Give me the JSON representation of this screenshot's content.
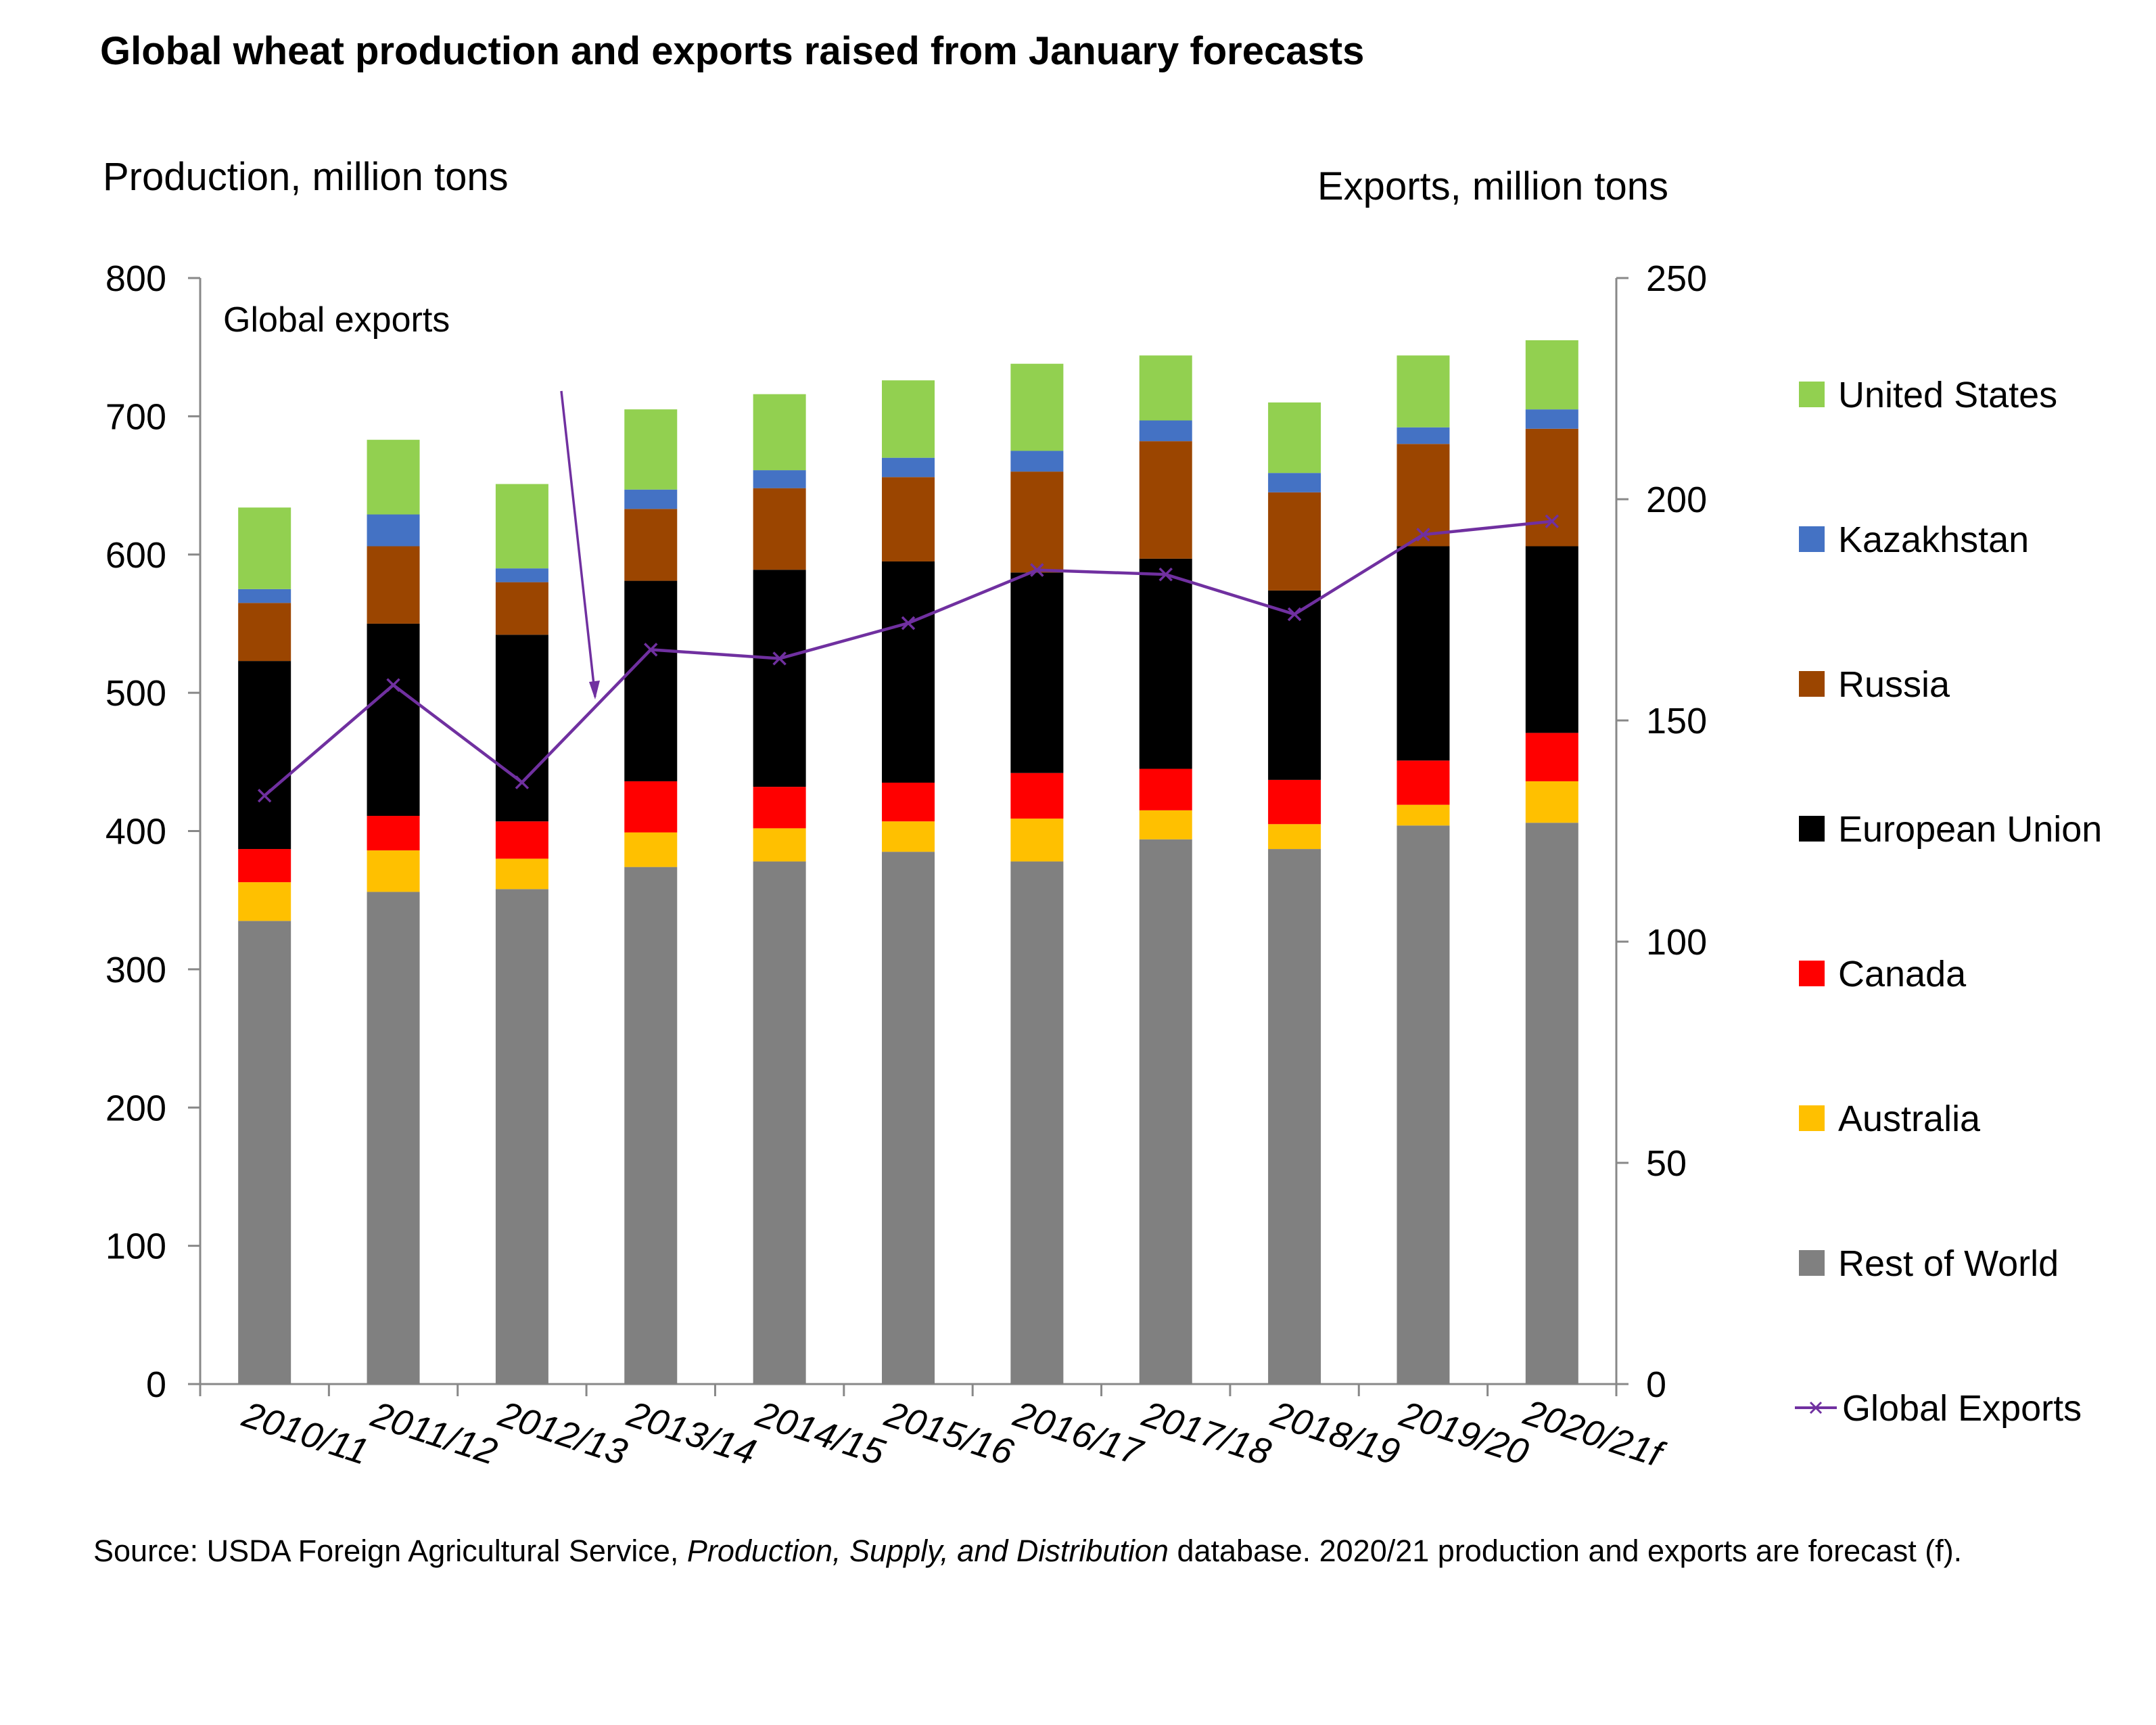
{
  "title": "Global wheat production and exports raised from January forecasts",
  "source": {
    "prefix": "Source: USDA Foreign Agricultural Service, ",
    "database_name": "Production, Supply, and Distribution",
    "suffix": " database. 2020/21 production and exports are forecast (f)."
  },
  "chart_data": {
    "type": "bar",
    "stacked": true,
    "title": "Global wheat production and exports raised from January forecasts",
    "ylabel": "Production, million tons",
    "y2label": "Exports, million tons",
    "ylim": [
      0,
      800
    ],
    "y2lim": [
      0,
      250
    ],
    "yticks": [
      0,
      100,
      200,
      300,
      400,
      500,
      600,
      700,
      800
    ],
    "y2ticks": [
      0,
      50,
      100,
      150,
      200,
      250
    ],
    "grid": false,
    "legend_position": "right",
    "annotation": {
      "text": "Global exports"
    },
    "categories": [
      "2010/11",
      "2011/12",
      "2012/13",
      "2013/14",
      "2014/15",
      "2015/16",
      "2016/17",
      "2017/18",
      "2018/19",
      "2019/20",
      "2020/21f"
    ],
    "series": [
      {
        "name": "Rest of World",
        "color": "#808080",
        "values": [
          335,
          356,
          358,
          374,
          378,
          385,
          378,
          394,
          387,
          404,
          406
        ]
      },
      {
        "name": "Australia",
        "color": "#FFC000",
        "values": [
          28,
          30,
          22,
          25,
          24,
          22,
          31,
          21,
          18,
          15,
          30
        ]
      },
      {
        "name": "Canada",
        "color": "#FF0000",
        "values": [
          24,
          25,
          27,
          37,
          30,
          28,
          33,
          30,
          32,
          32,
          35
        ]
      },
      {
        "name": "European Union",
        "color": "#000000",
        "values": [
          136,
          139,
          135,
          145,
          157,
          160,
          145,
          152,
          137,
          155,
          135
        ]
      },
      {
        "name": "Russia",
        "color": "#9B4500",
        "values": [
          42,
          56,
          38,
          52,
          59,
          61,
          73,
          85,
          71,
          74,
          85
        ]
      },
      {
        "name": "Kazakhstan",
        "color": "#4472C4",
        "values": [
          10,
          23,
          10,
          14,
          13,
          14,
          15,
          15,
          14,
          12,
          14
        ]
      },
      {
        "name": "United States",
        "color": "#92D050",
        "values": [
          59,
          54,
          61,
          58,
          55,
          56,
          63,
          47,
          51,
          52,
          50
        ]
      }
    ],
    "line_series": {
      "name": "Global Exports",
      "color": "#7030A0",
      "axis": "right",
      "values": [
        133,
        158,
        136,
        166,
        164,
        172,
        184,
        183,
        174,
        192,
        195
      ]
    },
    "legend_order": [
      "United States",
      "Kazakhstan",
      "Russia",
      "European Union",
      "Canada",
      "Australia",
      "Rest of World",
      "Global Exports"
    ]
  }
}
